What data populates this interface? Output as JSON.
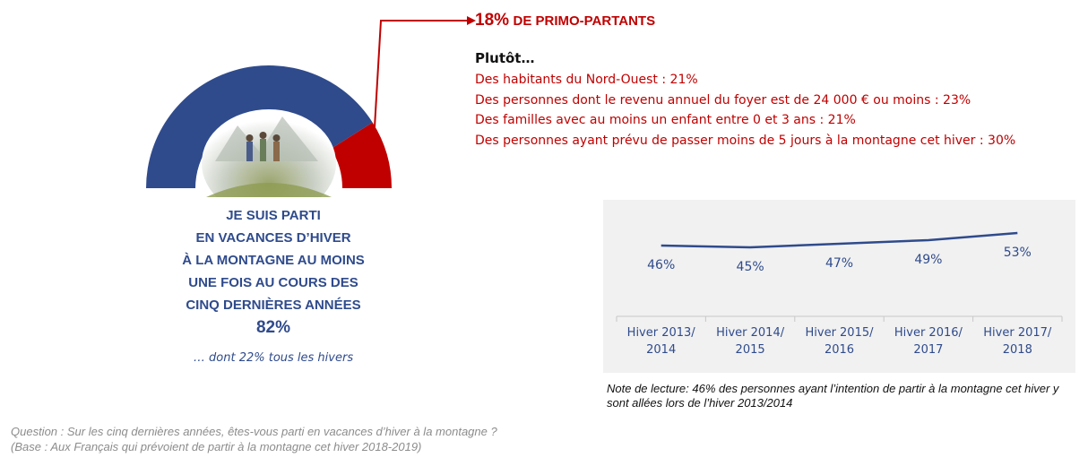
{
  "colors": {
    "navy": "#2f4b8c",
    "red": "#c00000",
    "panel": "#f1f1f1",
    "grey_text": "#8c8c8c"
  },
  "gauge": {
    "total_percent": 82,
    "primo_percent": 18,
    "image_icon": "hikers-photo-icon"
  },
  "primo": {
    "title_big": "18%",
    "title_rest": "DE PRIMO-PARTANTS",
    "intro": "Plutôt…",
    "items": [
      "Des habitants du Nord-Ouest : 21%",
      "Des personnes dont le revenu annuel du foyer est de 24 000 € ou moins : 23%",
      "Des familles avec au moins un enfant entre 0 et 3 ans : 21%",
      "Des personnes ayant prévu de passer moins de 5 jours à la montagne cet hiver : 30%"
    ]
  },
  "main": {
    "label": "JE SUIS PARTI\nEN VACANCES D’HIVER\nÀ LA MONTAGNE AU MOINS\nUNE FOIS AU COURS DES\nCINQ DERNIÈRES ANNÉES",
    "percent": "82%",
    "sub_note": "… dont 22% tous les hivers"
  },
  "chart_data": {
    "type": "line",
    "categories": [
      "Hiver 2013/ 2014",
      "Hiver 2014/ 2015",
      "Hiver 2015/ 2016",
      "Hiver 2016/ 2017",
      "Hiver 2017/ 2018"
    ],
    "category_lines": [
      [
        "Hiver 2013/",
        "2014"
      ],
      [
        "Hiver 2014/",
        "2015"
      ],
      [
        "Hiver 2015/",
        "2016"
      ],
      [
        "Hiver 2016/",
        "2017"
      ],
      [
        "Hiver 2017/",
        "2018"
      ]
    ],
    "values": [
      46,
      45,
      47,
      49,
      53
    ],
    "data_labels": [
      "46%",
      "45%",
      "47%",
      "49%",
      "53%"
    ],
    "ylim": [
      0,
      60
    ],
    "grid": false,
    "series_color": "#2f4b8c"
  },
  "notes": {
    "reading": "Note de lecture: 46% des personnes ayant l’intention de partir à la montagne cet hiver y sont allées lors de l’hiver 2013/2014",
    "question_line1": "Question : Sur les cinq dernières années, êtes-vous parti en vacances d’hiver à la montagne ?",
    "question_line2": "(Base : Aux Français qui prévoient de partir à la montagne cet hiver 2018-2019)"
  }
}
